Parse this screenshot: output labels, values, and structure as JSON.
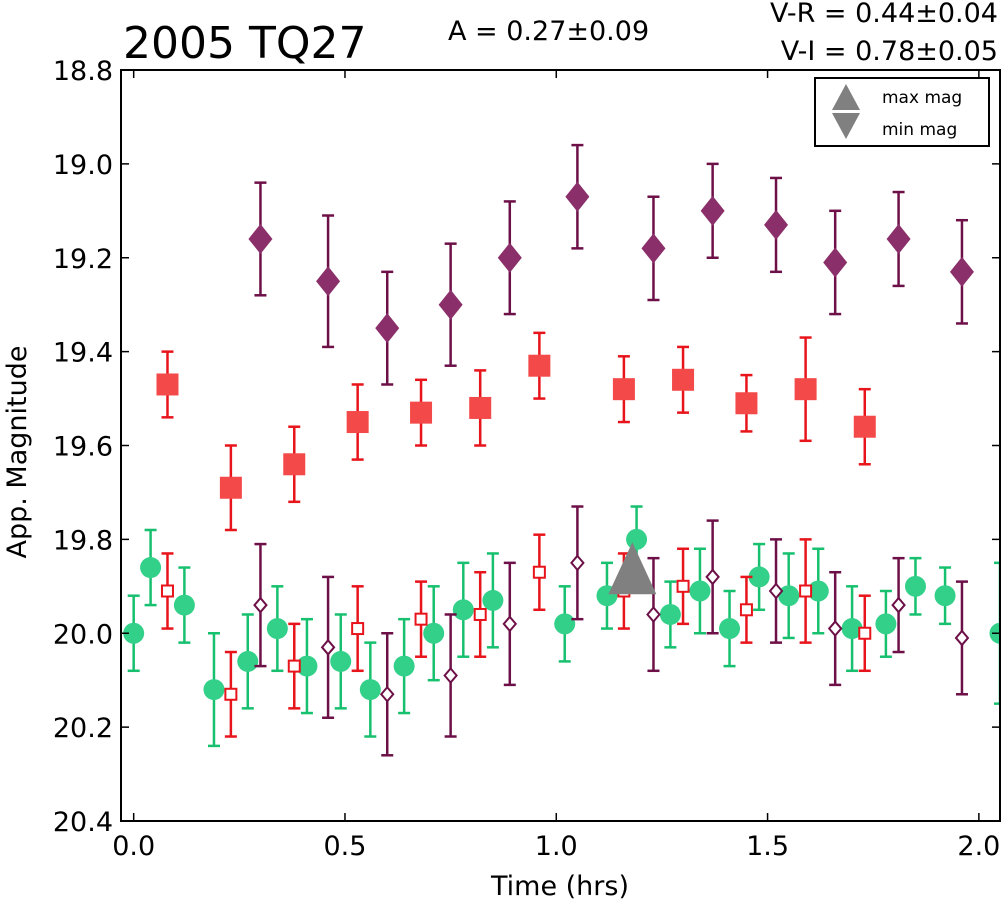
{
  "chart_data": {
    "type": "scatter",
    "title": "2005 TQ27",
    "amplitude_label": "A  = 0.27±0.09",
    "color_labels": [
      "V-R = 0.44±0.04",
      "V-I  = 0.78±0.05"
    ],
    "xlabel": "Time (hrs)",
    "ylabel": "App. Magnitude",
    "xlim": [
      -0.03,
      2.05
    ],
    "ylim": [
      18.8,
      20.4
    ],
    "y_inverted": true,
    "x_ticks": [
      0.0,
      0.5,
      1.0,
      1.5,
      2.0
    ],
    "x_tick_labels": [
      "0.0",
      "0.5",
      "1.0",
      "1.5",
      "2.0"
    ],
    "y_ticks": [
      18.8,
      19.0,
      19.2,
      19.4,
      19.6,
      19.8,
      20.0,
      20.2,
      20.4
    ],
    "y_tick_labels": [
      "18.8",
      "19.0",
      "19.2",
      "19.4",
      "19.6",
      "19.8",
      "20.0",
      "20.2",
      "20.4"
    ],
    "grid": false,
    "legend_position": "top-right",
    "legend": [
      {
        "label": "max mag",
        "marker": "triangle-up",
        "color": "#808080"
      },
      {
        "label": "min mag",
        "marker": "triangle-down",
        "color": "#808080"
      }
    ],
    "series": [
      {
        "marker": "diamond-filled",
        "color": "#8b2f6a",
        "err_color": "#6e1048",
        "points": [
          {
            "x": 0.3,
            "y": 19.16,
            "err": 0.12
          },
          {
            "x": 0.46,
            "y": 19.25,
            "err": 0.14
          },
          {
            "x": 0.6,
            "y": 19.35,
            "err": 0.12
          },
          {
            "x": 0.75,
            "y": 19.3,
            "err": 0.13
          },
          {
            "x": 0.89,
            "y": 19.2,
            "err": 0.12
          },
          {
            "x": 1.05,
            "y": 19.07,
            "err": 0.11
          },
          {
            "x": 1.23,
            "y": 19.18,
            "err": 0.11
          },
          {
            "x": 1.37,
            "y": 19.1,
            "err": 0.1
          },
          {
            "x": 1.52,
            "y": 19.13,
            "err": 0.1
          },
          {
            "x": 1.66,
            "y": 19.21,
            "err": 0.11
          },
          {
            "x": 1.81,
            "y": 19.16,
            "err": 0.1
          },
          {
            "x": 1.96,
            "y": 19.23,
            "err": 0.11
          }
        ]
      },
      {
        "marker": "square-filled",
        "color": "#f44949",
        "err_color": "#e8141b",
        "points": [
          {
            "x": 0.08,
            "y": 19.47,
            "err": 0.07
          },
          {
            "x": 0.23,
            "y": 19.69,
            "err": 0.09
          },
          {
            "x": 0.38,
            "y": 19.64,
            "err": 0.08
          },
          {
            "x": 0.53,
            "y": 19.55,
            "err": 0.08
          },
          {
            "x": 0.68,
            "y": 19.53,
            "err": 0.07
          },
          {
            "x": 0.82,
            "y": 19.52,
            "err": 0.08
          },
          {
            "x": 0.96,
            "y": 19.43,
            "err": 0.07
          },
          {
            "x": 1.16,
            "y": 19.48,
            "err": 0.07
          },
          {
            "x": 1.3,
            "y": 19.46,
            "err": 0.07
          },
          {
            "x": 1.45,
            "y": 19.51,
            "err": 0.06
          },
          {
            "x": 1.59,
            "y": 19.48,
            "err": 0.11
          },
          {
            "x": 1.73,
            "y": 19.56,
            "err": 0.08
          }
        ]
      },
      {
        "marker": "circle-filled",
        "color": "#33d08a",
        "err_color": "#17c06e",
        "points": [
          {
            "x": 0.0,
            "y": 20.0,
            "err": 0.08
          },
          {
            "x": 0.04,
            "y": 19.86,
            "err": 0.08
          },
          {
            "x": 0.12,
            "y": 19.94,
            "err": 0.08
          },
          {
            "x": 0.19,
            "y": 20.12,
            "err": 0.12
          },
          {
            "x": 0.27,
            "y": 20.06,
            "err": 0.1
          },
          {
            "x": 0.34,
            "y": 19.99,
            "err": 0.09
          },
          {
            "x": 0.41,
            "y": 20.07,
            "err": 0.1
          },
          {
            "x": 0.49,
            "y": 20.06,
            "err": 0.1
          },
          {
            "x": 0.56,
            "y": 20.12,
            "err": 0.1
          },
          {
            "x": 0.64,
            "y": 20.07,
            "err": 0.1
          },
          {
            "x": 0.71,
            "y": 20.0,
            "err": 0.1
          },
          {
            "x": 0.78,
            "y": 19.95,
            "err": 0.1
          },
          {
            "x": 0.85,
            "y": 19.93,
            "err": 0.1
          },
          {
            "x": 1.02,
            "y": 19.98,
            "err": 0.08
          },
          {
            "x": 1.12,
            "y": 19.92,
            "err": 0.07
          },
          {
            "x": 1.19,
            "y": 19.8,
            "err": 0.07
          },
          {
            "x": 1.27,
            "y": 19.96,
            "err": 0.07
          },
          {
            "x": 1.34,
            "y": 19.91,
            "err": 0.09
          },
          {
            "x": 1.41,
            "y": 19.99,
            "err": 0.08
          },
          {
            "x": 1.48,
            "y": 19.88,
            "err": 0.07
          },
          {
            "x": 1.55,
            "y": 19.92,
            "err": 0.09
          },
          {
            "x": 1.62,
            "y": 19.91,
            "err": 0.09
          },
          {
            "x": 1.7,
            "y": 19.99,
            "err": 0.09
          },
          {
            "x": 1.78,
            "y": 19.98,
            "err": 0.07
          },
          {
            "x": 1.85,
            "y": 19.9,
            "err": 0.06
          },
          {
            "x": 1.92,
            "y": 19.92,
            "err": 0.06
          },
          {
            "x": 2.05,
            "y": 20.0,
            "err": 0.15
          }
        ]
      },
      {
        "marker": "square-open",
        "color": "#e8141b",
        "err_color": "#e8141b",
        "points": [
          {
            "x": 0.08,
            "y": 19.91,
            "err": 0.08
          },
          {
            "x": 0.23,
            "y": 20.13,
            "err": 0.09
          },
          {
            "x": 0.38,
            "y": 20.07,
            "err": 0.09
          },
          {
            "x": 0.53,
            "y": 19.99,
            "err": 0.09
          },
          {
            "x": 0.68,
            "y": 19.97,
            "err": 0.08
          },
          {
            "x": 0.82,
            "y": 19.96,
            "err": 0.09
          },
          {
            "x": 0.96,
            "y": 19.87,
            "err": 0.08
          },
          {
            "x": 1.16,
            "y": 19.91,
            "err": 0.08
          },
          {
            "x": 1.3,
            "y": 19.9,
            "err": 0.08
          },
          {
            "x": 1.45,
            "y": 19.95,
            "err": 0.07
          },
          {
            "x": 1.59,
            "y": 19.91,
            "err": 0.11
          },
          {
            "x": 1.73,
            "y": 20.0,
            "err": 0.08
          }
        ]
      },
      {
        "marker": "diamond-open",
        "color": "#6e1048",
        "err_color": "#6e1048",
        "points": [
          {
            "x": 0.3,
            "y": 19.94,
            "err": 0.13
          },
          {
            "x": 0.46,
            "y": 20.03,
            "err": 0.15
          },
          {
            "x": 0.6,
            "y": 20.13,
            "err": 0.13
          },
          {
            "x": 0.75,
            "y": 20.09,
            "err": 0.13
          },
          {
            "x": 0.89,
            "y": 19.98,
            "err": 0.13
          },
          {
            "x": 1.05,
            "y": 19.85,
            "err": 0.12
          },
          {
            "x": 1.23,
            "y": 19.96,
            "err": 0.12
          },
          {
            "x": 1.37,
            "y": 19.88,
            "err": 0.12
          },
          {
            "x": 1.52,
            "y": 19.91,
            "err": 0.11
          },
          {
            "x": 1.66,
            "y": 19.99,
            "err": 0.12
          },
          {
            "x": 1.81,
            "y": 19.94,
            "err": 0.1
          },
          {
            "x": 1.96,
            "y": 20.01,
            "err": 0.12
          }
        ]
      },
      {
        "marker": "triangle-up",
        "color": "#808080",
        "err_color": "#808080",
        "points": [
          {
            "x": 1.18,
            "y": 19.87,
            "err": 0
          }
        ]
      }
    ]
  }
}
